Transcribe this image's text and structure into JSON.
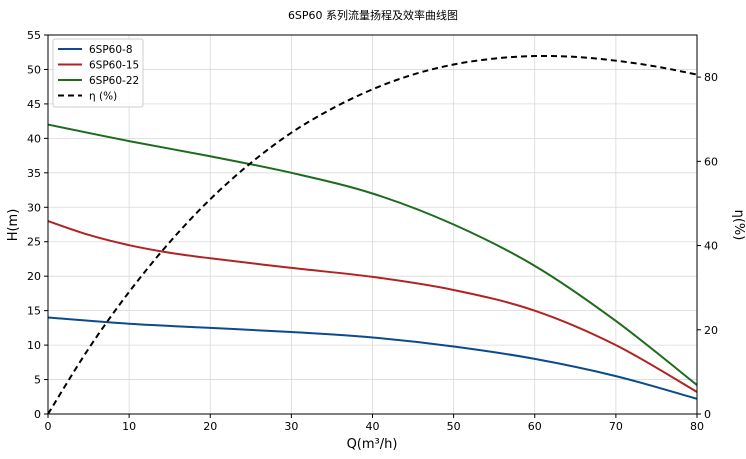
{
  "chart_data": {
    "type": "line",
    "title": "6SP60 系列流量扬程及效率曲线图",
    "xlabel": "Q(m³/h)",
    "ylabel": "H(m)",
    "y2label": "η(%)",
    "xlim": [
      0,
      80
    ],
    "ylim": [
      0,
      55
    ],
    "y2lim": [
      0,
      90
    ],
    "x_ticks": [
      0,
      10,
      20,
      30,
      40,
      50,
      60,
      70,
      80
    ],
    "y_ticks": [
      0,
      5,
      10,
      15,
      20,
      25,
      30,
      35,
      40,
      45,
      50,
      55
    ],
    "y2_ticks": [
      0,
      20,
      40,
      60,
      80
    ],
    "grid": true,
    "legend_position": "top-left",
    "series": [
      {
        "name": "6SP60-8",
        "color": "#0b4a8f",
        "axis": "left",
        "style": "solid",
        "x": [
          0,
          10,
          20,
          30,
          40,
          50,
          60,
          70,
          80
        ],
        "values": [
          14.0,
          13.1,
          12.5,
          11.9,
          11.1,
          9.8,
          8.0,
          5.5,
          2.2
        ]
      },
      {
        "name": "6SP60-15",
        "color": "#b22222",
        "axis": "left",
        "style": "solid",
        "x": [
          0,
          5,
          10,
          15,
          20,
          30,
          40,
          50,
          60,
          70,
          80
        ],
        "values": [
          28.0,
          26.0,
          24.5,
          23.4,
          22.6,
          21.2,
          19.9,
          18.0,
          15.0,
          10.0,
          3.2
        ]
      },
      {
        "name": "6SP60-22",
        "color": "#1d6b1d",
        "axis": "left",
        "style": "solid",
        "x": [
          0,
          10,
          20,
          30,
          40,
          50,
          60,
          70,
          80
        ],
        "values": [
          42.0,
          39.6,
          37.4,
          35.0,
          32.0,
          27.5,
          21.5,
          13.5,
          4.2
        ]
      },
      {
        "name": "η (%)",
        "color": "#000000",
        "axis": "right",
        "style": "dashed",
        "x": [
          0,
          5,
          10,
          15,
          20,
          25,
          30,
          35,
          40,
          45,
          50,
          55,
          60,
          65,
          70,
          75,
          80
        ],
        "values": [
          0,
          15.5,
          29.0,
          40.8,
          51.0,
          59.6,
          66.8,
          72.5,
          77.1,
          80.6,
          83.0,
          84.4,
          85.0,
          84.8,
          83.9,
          82.5,
          80.6
        ]
      }
    ]
  }
}
